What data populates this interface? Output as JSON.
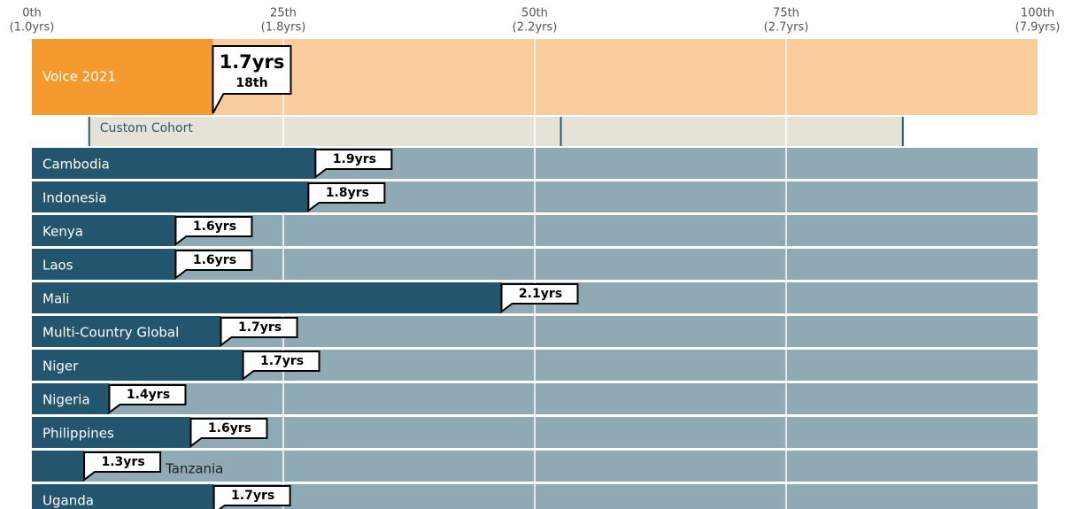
{
  "chart_data": {
    "type": "percentile-bar",
    "xlim": [
      0,
      100
    ],
    "xticks": [
      {
        "value": 0,
        "label": "0th",
        "note": "(1.0yrs)"
      },
      {
        "value": 25,
        "label": "25th",
        "note": "(1.8yrs)"
      },
      {
        "value": 50,
        "label": "50th",
        "note": "(2.2yrs)"
      },
      {
        "value": 75,
        "label": "75th",
        "note": "(2.7yrs)"
      },
      {
        "value": 100,
        "label": "100th",
        "note": "(7.9yrs)"
      }
    ],
    "highlight": {
      "name": "Voice 2021",
      "value": 18,
      "value_label": "1.7yrs",
      "rank_label": "18th",
      "color": "#f59a2e",
      "background": "#f9cd9e"
    },
    "cohort": {
      "name": "Custom Cohort",
      "values": [
        5.7,
        52.6,
        86.6
      ],
      "color": "#e7e2d7",
      "marker_color": "#2a5a73"
    },
    "categories": [
      "Cambodia",
      "Indonesia",
      "Kenya",
      "Laos",
      "Mali",
      "Multi-Country Global",
      "Niger",
      "Nigeria",
      "Philippines",
      "Tanzania",
      "Uganda"
    ],
    "values": [
      28.2,
      27.5,
      14.3,
      14.3,
      46.7,
      18.8,
      21.0,
      7.7,
      15.8,
      5.2,
      18.1
    ],
    "duration_labels": [
      "1.9yrs",
      "1.8yrs",
      "1.6yrs",
      "1.6yrs",
      "2.1yrs",
      "1.7yrs",
      "1.7yrs",
      "1.4yrs",
      "1.6yrs",
      "1.3yrs",
      "1.7yrs"
    ],
    "color": "#24556e",
    "background": "#8fa9b5"
  }
}
